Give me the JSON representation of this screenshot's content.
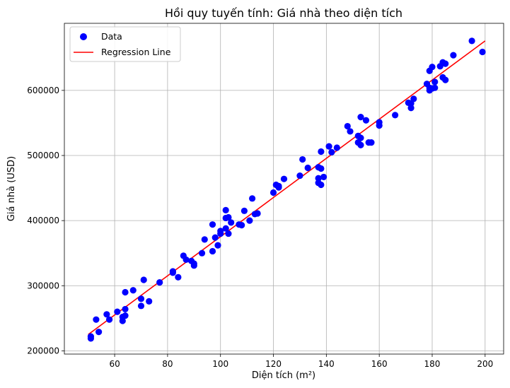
{
  "chart_data": {
    "type": "scatter",
    "title": "Hồi quy tuyến tính: Giá nhà theo diện tích",
    "xlabel": "Diện tích (m²)",
    "ylabel": "Giá nhà (USD)",
    "xlim": [
      41,
      207
    ],
    "ylim": [
      195000,
      703000
    ],
    "xticks": [
      60,
      80,
      100,
      120,
      140,
      160,
      180,
      200
    ],
    "yticks": [
      200000,
      300000,
      400000,
      500000,
      600000
    ],
    "grid": true,
    "legend_position": "upper-left",
    "colors": {
      "points": "#0000ff",
      "line": "#ff0000",
      "grid": "#b0b0b0",
      "axes": "#000000"
    },
    "series": [
      {
        "name": "Data",
        "kind": "scatter",
        "points": [
          [
            51,
            219000
          ],
          [
            51,
            222000
          ],
          [
            53,
            248000
          ],
          [
            54,
            229000
          ],
          [
            57,
            256000
          ],
          [
            58,
            248000
          ],
          [
            61,
            260000
          ],
          [
            63,
            246000
          ],
          [
            63,
            252000
          ],
          [
            64,
            254000
          ],
          [
            64,
            264000
          ],
          [
            64,
            290000
          ],
          [
            67,
            293000
          ],
          [
            70,
            269000
          ],
          [
            70,
            280000
          ],
          [
            71,
            309000
          ],
          [
            73,
            276000
          ],
          [
            77,
            305000
          ],
          [
            82,
            320000
          ],
          [
            82,
            322000
          ],
          [
            84,
            313000
          ],
          [
            86,
            346000
          ],
          [
            87,
            340000
          ],
          [
            89,
            338000
          ],
          [
            90,
            331000
          ],
          [
            90,
            334000
          ],
          [
            93,
            350000
          ],
          [
            94,
            371000
          ],
          [
            97,
            353000
          ],
          [
            97,
            394000
          ],
          [
            98,
            374000
          ],
          [
            99,
            362000
          ],
          [
            100,
            380000
          ],
          [
            100,
            384000
          ],
          [
            102,
            388000
          ],
          [
            102,
            404000
          ],
          [
            102,
            416000
          ],
          [
            103,
            380000
          ],
          [
            103,
            405000
          ],
          [
            104,
            397000
          ],
          [
            107,
            394000
          ],
          [
            108,
            393000
          ],
          [
            109,
            415000
          ],
          [
            111,
            400000
          ],
          [
            112,
            434000
          ],
          [
            113,
            410000
          ],
          [
            114,
            411000
          ],
          [
            120,
            443000
          ],
          [
            121,
            455000
          ],
          [
            122,
            451000
          ],
          [
            122,
            453000
          ],
          [
            124,
            464000
          ],
          [
            130,
            469000
          ],
          [
            131,
            494000
          ],
          [
            133,
            481000
          ],
          [
            137,
            458000
          ],
          [
            137,
            465000
          ],
          [
            137,
            482000
          ],
          [
            138,
            455000
          ],
          [
            138,
            480000
          ],
          [
            138,
            506000
          ],
          [
            139,
            467000
          ],
          [
            141,
            514000
          ],
          [
            142,
            505000
          ],
          [
            144,
            512000
          ],
          [
            148,
            545000
          ],
          [
            149,
            537000
          ],
          [
            152,
            520000
          ],
          [
            152,
            530000
          ],
          [
            153,
            516000
          ],
          [
            153,
            527000
          ],
          [
            153,
            559000
          ],
          [
            155,
            554000
          ],
          [
            156,
            520000
          ],
          [
            157,
            520000
          ],
          [
            160,
            546000
          ],
          [
            160,
            551000
          ],
          [
            166,
            562000
          ],
          [
            171,
            581000
          ],
          [
            172,
            573000
          ],
          [
            172,
            580000
          ],
          [
            173,
            587000
          ],
          [
            178,
            610000
          ],
          [
            179,
            600000
          ],
          [
            179,
            604000
          ],
          [
            179,
            630000
          ],
          [
            180,
            603000
          ],
          [
            180,
            636000
          ],
          [
            181,
            604000
          ],
          [
            181,
            613000
          ],
          [
            183,
            637000
          ],
          [
            184,
            620000
          ],
          [
            184,
            643000
          ],
          [
            185,
            616000
          ],
          [
            185,
            641000
          ],
          [
            188,
            654000
          ],
          [
            195,
            676000
          ],
          [
            199,
            659000
          ]
        ]
      },
      {
        "name": "Regression Line",
        "kind": "line",
        "points": [
          [
            50,
            225000
          ],
          [
            200,
            676000
          ]
        ]
      }
    ]
  }
}
